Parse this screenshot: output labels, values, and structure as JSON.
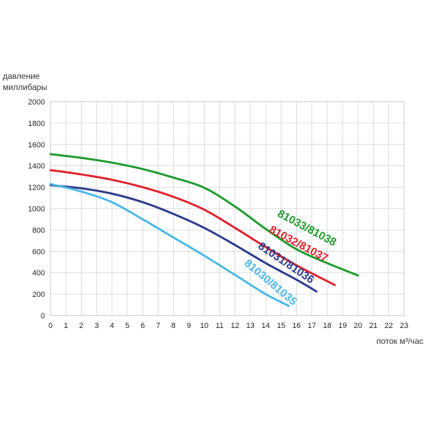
{
  "chart_data": {
    "type": "line",
    "ylabel_lines": [
      "давление",
      "миллибары"
    ],
    "xlabel": "поток м³/час",
    "xlim": [
      0,
      23
    ],
    "ylim": [
      0,
      2000
    ],
    "x_ticks": [
      "0",
      "1",
      "2",
      "3",
      "4",
      "5",
      "6",
      "7",
      "8",
      "9",
      "10",
      "11",
      "12",
      "13",
      "14",
      "15",
      "16",
      "17",
      "18",
      "19",
      "20",
      "21",
      "22",
      "23"
    ],
    "y_ticks": [
      "0",
      "200",
      "400",
      "600",
      "800",
      "1000",
      "1200",
      "1400",
      "1600",
      "1800",
      "2000"
    ],
    "grid": true,
    "series": [
      {
        "name": "81033/81038",
        "color": "#1e9a2c",
        "points": [
          [
            0,
            1510
          ],
          [
            2,
            1475
          ],
          [
            4,
            1430
          ],
          [
            6,
            1370
          ],
          [
            8,
            1290
          ],
          [
            10,
            1195
          ],
          [
            12,
            1020
          ],
          [
            14,
            810
          ],
          [
            16,
            620
          ],
          [
            18,
            490
          ],
          [
            20,
            375
          ]
        ]
      },
      {
        "name": "81032/81037",
        "color": "#e0202a",
        "points": [
          [
            0,
            1360
          ],
          [
            2,
            1320
          ],
          [
            4,
            1270
          ],
          [
            6,
            1200
          ],
          [
            8,
            1110
          ],
          [
            10,
            990
          ],
          [
            12,
            820
          ],
          [
            14,
            640
          ],
          [
            16,
            470
          ],
          [
            18.5,
            285
          ]
        ]
      },
      {
        "name": "81031/81036",
        "color": "#2a3a8e",
        "points": [
          [
            0,
            1220
          ],
          [
            2,
            1190
          ],
          [
            4,
            1140
          ],
          [
            6,
            1060
          ],
          [
            8,
            950
          ],
          [
            10,
            820
          ],
          [
            12,
            660
          ],
          [
            14,
            490
          ],
          [
            16,
            335
          ],
          [
            17.3,
            225
          ]
        ]
      },
      {
        "name": "81030/81035",
        "color": "#4ab8e6",
        "points": [
          [
            0,
            1230
          ],
          [
            2,
            1160
          ],
          [
            4,
            1060
          ],
          [
            6,
            900
          ],
          [
            8,
            730
          ],
          [
            10,
            560
          ],
          [
            12,
            380
          ],
          [
            14,
            200
          ],
          [
            15.5,
            90
          ]
        ]
      }
    ]
  }
}
